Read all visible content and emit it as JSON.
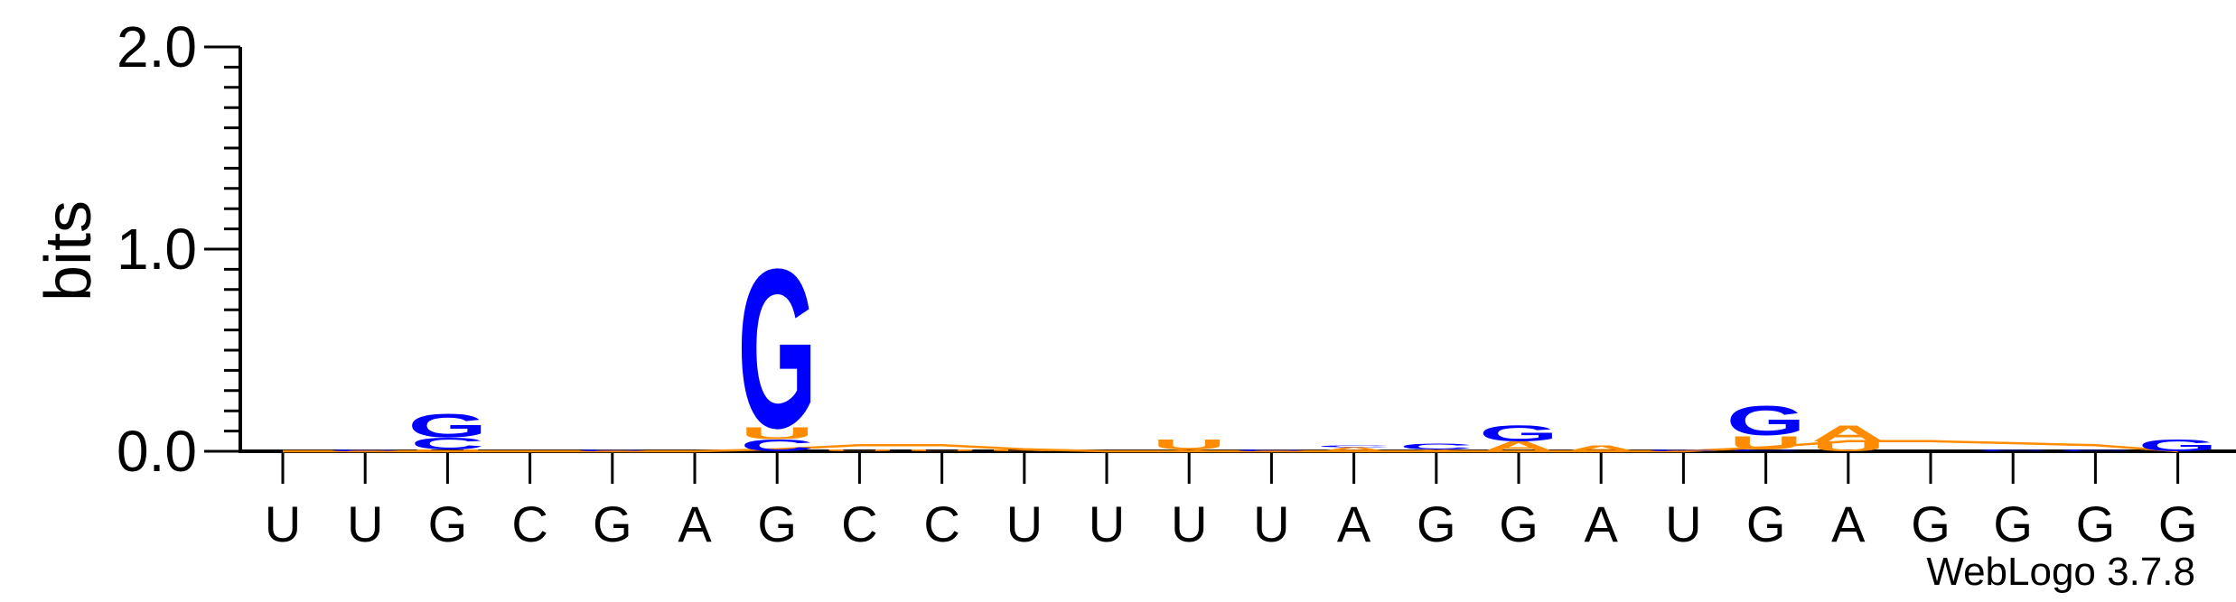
{
  "chart_data": {
    "type": "sequence-logo",
    "ylabel": "bits",
    "ylim": [
      0,
      2.0
    ],
    "yticks": [
      "0.0",
      "1.0",
      "2.0"
    ],
    "categories": [
      "U",
      "U",
      "G",
      "C",
      "G",
      "A",
      "G",
      "C",
      "C",
      "U",
      "U",
      "U",
      "U",
      "A",
      "G",
      "G",
      "A",
      "U",
      "G",
      "A",
      "G",
      "G",
      "G",
      "G"
    ],
    "colors": {
      "G": "#0000ff",
      "C": "#0000ff",
      "A": "#ff8c00",
      "U": "#ff8c00"
    },
    "stacks": [
      [],
      [
        [
          "C",
          0.01
        ]
      ],
      [
        [
          "U",
          0.01
        ],
        [
          "C",
          0.06
        ],
        [
          "G",
          0.12
        ]
      ],
      [],
      [
        [
          "C",
          0.01
        ]
      ],
      [],
      [
        [
          "C",
          0.06
        ],
        [
          "U",
          0.06
        ],
        [
          "G",
          0.82
        ]
      ],
      [
        [
          "U",
          0.01
        ]
      ],
      [
        [
          "U",
          0.01
        ]
      ],
      [
        [
          "U",
          0.01
        ]
      ],
      [],
      [
        [
          "A",
          0.01
        ],
        [
          "U",
          0.05
        ]
      ],
      [
        [
          "C",
          0.01
        ]
      ],
      [
        [
          "A",
          0.02
        ],
        [
          "C",
          0.01
        ]
      ],
      [
        [
          "A",
          0.01
        ],
        [
          "C",
          0.03
        ]
      ],
      [
        [
          "A",
          0.05
        ],
        [
          "G",
          0.08
        ]
      ],
      [
        [
          "A",
          0.03
        ]
      ],
      [
        [
          "C",
          0.01
        ]
      ],
      [
        [
          "C",
          0.01
        ],
        [
          "U",
          0.07
        ],
        [
          "G",
          0.15
        ]
      ],
      [
        [
          "U",
          0.05
        ],
        [
          "A",
          0.08
        ]
      ],
      [],
      [
        [
          "C",
          0.01
        ]
      ],
      [
        [
          "C",
          0.01
        ]
      ],
      [
        [
          "G",
          0.06
        ]
      ]
    ],
    "baseline_curve": [
      0,
      0,
      0,
      0,
      0,
      0,
      0.01,
      0.03,
      0.03,
      0.01,
      0,
      0,
      0,
      0,
      0,
      0,
      0,
      0,
      0.02,
      0.05,
      0.05,
      0.04,
      0.03,
      0
    ]
  },
  "watermark": "WebLogo 3.7.8"
}
